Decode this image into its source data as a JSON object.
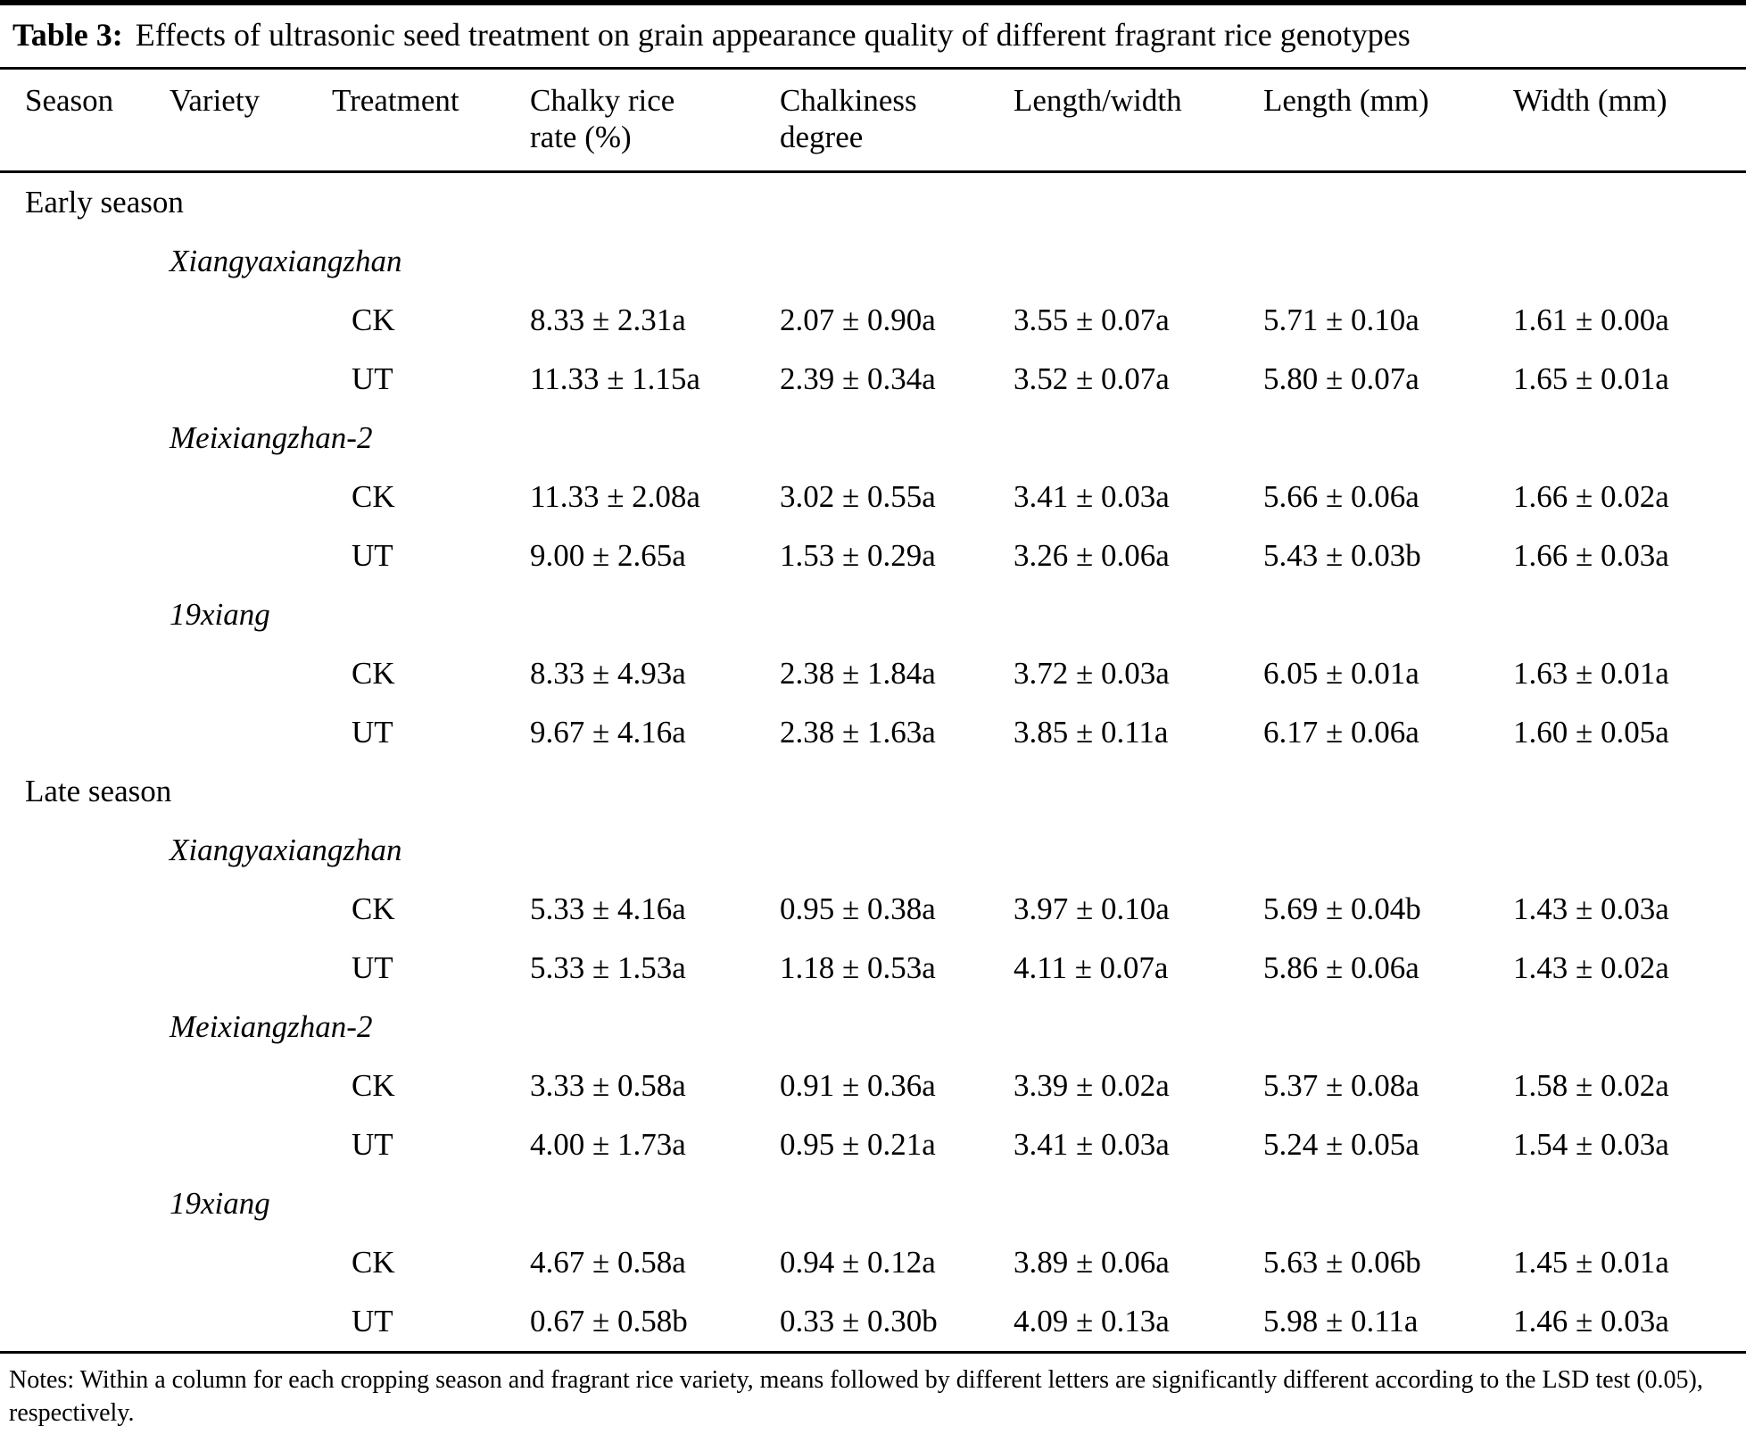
{
  "table": {
    "title": {
      "label": "Table 3:",
      "text": "Effects of ultrasonic seed treatment on grain appearance quality of different fragrant rice genotypes"
    },
    "columns": [
      "Season",
      "Variety",
      "Treatment",
      "Chalky rice rate (%)",
      "Chalkiness degree",
      "Length/width",
      "Length (mm)",
      "Width (mm)"
    ],
    "rows": [
      {
        "kind": "season",
        "label": "Early season"
      },
      {
        "kind": "variety",
        "label": "Xiangyaxiangzhan"
      },
      {
        "kind": "data",
        "treatment": "CK",
        "cells": [
          "8.33 ± 2.31a",
          "2.07 ± 0.90a",
          "3.55 ± 0.07a",
          "5.71 ± 0.10a",
          "1.61 ± 0.00a"
        ]
      },
      {
        "kind": "data",
        "treatment": "UT",
        "cells": [
          "11.33 ± 1.15a",
          "2.39 ± 0.34a",
          "3.52 ± 0.07a",
          "5.80 ± 0.07a",
          "1.65 ± 0.01a"
        ]
      },
      {
        "kind": "variety",
        "label": "Meixiangzhan-2"
      },
      {
        "kind": "data",
        "treatment": "CK",
        "cells": [
          "11.33 ± 2.08a",
          "3.02 ± 0.55a",
          "3.41 ± 0.03a",
          "5.66 ± 0.06a",
          "1.66 ± 0.02a"
        ]
      },
      {
        "kind": "data",
        "treatment": "UT",
        "cells": [
          "9.00 ± 2.65a",
          "1.53 ± 0.29a",
          "3.26 ± 0.06a",
          "5.43 ± 0.03b",
          "1.66 ± 0.03a"
        ]
      },
      {
        "kind": "variety",
        "label": "19xiang"
      },
      {
        "kind": "data",
        "treatment": "CK",
        "cells": [
          "8.33 ± 4.93a",
          "2.38 ± 1.84a",
          "3.72 ± 0.03a",
          "6.05 ± 0.01a",
          "1.63 ± 0.01a"
        ]
      },
      {
        "kind": "data",
        "treatment": "UT",
        "cells": [
          "9.67 ± 4.16a",
          "2.38 ± 1.63a",
          "3.85 ± 0.11a",
          "6.17 ± 0.06a",
          "1.60 ± 0.05a"
        ]
      },
      {
        "kind": "season",
        "label": "Late season"
      },
      {
        "kind": "variety",
        "label": "Xiangyaxiangzhan"
      },
      {
        "kind": "data",
        "treatment": "CK",
        "cells": [
          "5.33 ± 4.16a",
          "0.95 ± 0.38a",
          "3.97 ± 0.10a",
          "5.69 ± 0.04b",
          "1.43 ± 0.03a"
        ]
      },
      {
        "kind": "data",
        "treatment": "UT",
        "cells": [
          "5.33 ± 1.53a",
          "1.18 ± 0.53a",
          "4.11 ± 0.07a",
          "5.86 ± 0.06a",
          "1.43 ± 0.02a"
        ]
      },
      {
        "kind": "variety",
        "label": "Meixiangzhan-2"
      },
      {
        "kind": "data",
        "treatment": "CK",
        "cells": [
          "3.33 ± 0.58a",
          "0.91 ± 0.36a",
          "3.39 ± 0.02a",
          "5.37 ± 0.08a",
          "1.58 ± 0.02a"
        ]
      },
      {
        "kind": "data",
        "treatment": "UT",
        "cells": [
          "4.00 ± 1.73a",
          "0.95 ± 0.21a",
          "3.41 ± 0.03a",
          "5.24 ± 0.05a",
          "1.54 ± 0.03a"
        ]
      },
      {
        "kind": "variety",
        "label": "19xiang"
      },
      {
        "kind": "data",
        "treatment": "CK",
        "cells": [
          "4.67 ± 0.58a",
          "0.94 ± 0.12a",
          "3.89 ± 0.06a",
          "5.63 ± 0.06b",
          "1.45 ± 0.01a"
        ]
      },
      {
        "kind": "data",
        "treatment": "UT",
        "cells": [
          "0.67 ± 0.58b",
          "0.33 ± 0.30b",
          "4.09 ± 0.13a",
          "5.98 ± 0.11a",
          "1.46 ± 0.03a"
        ]
      }
    ],
    "notes": "Notes: Within a column for each cropping season and fragrant rice variety, means followed by different letters are significantly different according to the LSD test (0.05), respectively."
  }
}
